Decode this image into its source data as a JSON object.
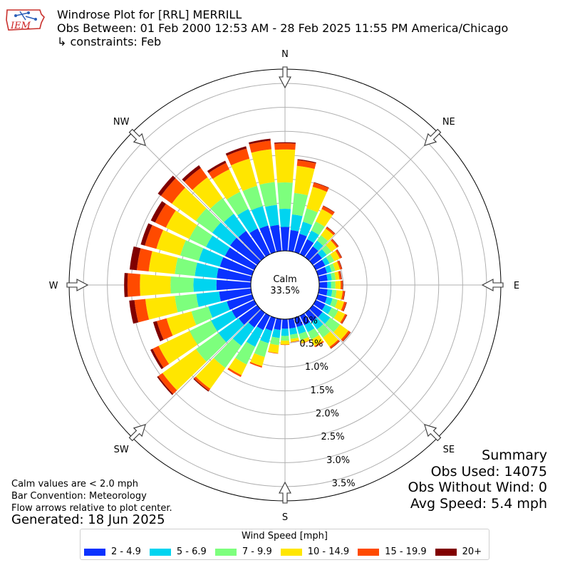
{
  "header": {
    "title": "Windrose Plot for [RRL] MERRILL",
    "period": "Obs Between: 01 Feb 2000 12:53 AM - 28 Feb 2025 11:55 PM America/Chicago",
    "constraints": "↳ constraints: Feb"
  },
  "logo": {
    "text": "IEM",
    "icon": "iem-iowa-logo",
    "color": "#cc2222"
  },
  "notes": {
    "calm": "Calm values are < 2.0 mph",
    "convention": "Bar Convention: Meteorology",
    "flow": "Flow arrows relative to plot center.",
    "generated": "Generated: 18 Jun 2025"
  },
  "summary": {
    "heading": "Summary",
    "obs_used": "Obs Used: 14075",
    "obs_without_wind": "Obs Without Wind: 0",
    "avg_speed": "Avg Speed: 5.4 mph"
  },
  "center": {
    "label": "Calm",
    "value": "33.5%"
  },
  "chart_data": {
    "type": "windrose",
    "title": "Windrose Plot for [RRL] MERRILL",
    "calm_percent": 33.5,
    "radial_ticks": [
      "0.0%",
      "0.5%",
      "1.0%",
      "1.5%",
      "2.0%",
      "2.5%",
      "3.0%",
      "3.5%"
    ],
    "radial_max": 3.8,
    "grid": true,
    "compass": [
      "N",
      "NE",
      "E",
      "SE",
      "S",
      "SW",
      "W",
      "NW"
    ],
    "legend_title": "Wind Speed [mph]",
    "bins": [
      {
        "label": "2 - 4.9",
        "color": "#0a32ff"
      },
      {
        "label": "5 - 6.9",
        "color": "#00d4f0"
      },
      {
        "label": "7 - 9.9",
        "color": "#7dff7d"
      },
      {
        "label": "10 - 14.9",
        "color": "#ffe600"
      },
      {
        "label": "15 - 19.9",
        "color": "#ff4a00"
      },
      {
        "label": "20+",
        "color": "#800000"
      }
    ],
    "directions_deg": [
      0,
      10,
      20,
      30,
      40,
      50,
      60,
      70,
      80,
      90,
      100,
      110,
      120,
      130,
      140,
      150,
      160,
      170,
      180,
      190,
      200,
      210,
      220,
      230,
      240,
      250,
      260,
      270,
      280,
      290,
      300,
      310,
      320,
      330,
      340,
      350
    ],
    "cumulative_percent": [
      [
        0.5,
        0.88,
        1.43,
        2.12,
        2.25,
        2.27
      ],
      [
        0.44,
        0.77,
        1.22,
        1.79,
        1.91,
        1.93
      ],
      [
        0.4,
        0.66,
        0.95,
        1.42,
        1.51,
        1.52
      ],
      [
        0.35,
        0.55,
        0.76,
        1.05,
        1.12,
        1.13
      ],
      [
        0.28,
        0.43,
        0.57,
        0.74,
        0.78,
        0.79
      ],
      [
        0.24,
        0.36,
        0.48,
        0.62,
        0.66,
        0.67
      ],
      [
        0.22,
        0.32,
        0.43,
        0.56,
        0.6,
        0.61
      ],
      [
        0.2,
        0.3,
        0.38,
        0.48,
        0.52,
        0.53
      ],
      [
        0.18,
        0.27,
        0.35,
        0.43,
        0.47,
        0.48
      ],
      [
        0.17,
        0.25,
        0.34,
        0.45,
        0.49,
        0.5
      ],
      [
        0.18,
        0.28,
        0.37,
        0.5,
        0.54,
        0.55
      ],
      [
        0.2,
        0.32,
        0.43,
        0.57,
        0.62,
        0.63
      ],
      [
        0.22,
        0.37,
        0.52,
        0.68,
        0.72,
        0.73
      ],
      [
        0.25,
        0.45,
        0.7,
        0.92,
        0.97,
        0.98
      ],
      [
        0.24,
        0.43,
        0.64,
        0.88,
        0.92,
        0.93
      ],
      [
        0.22,
        0.38,
        0.55,
        0.7,
        0.73,
        0.73
      ],
      [
        0.2,
        0.35,
        0.48,
        0.55,
        0.56,
        0.56
      ],
      [
        0.2,
        0.33,
        0.42,
        0.48,
        0.49,
        0.49
      ],
      [
        0.2,
        0.35,
        0.45,
        0.53,
        0.54,
        0.54
      ],
      [
        0.23,
        0.4,
        0.55,
        0.72,
        0.73,
        0.73
      ],
      [
        0.28,
        0.55,
        0.85,
        1.05,
        1.08,
        1.08
      ],
      [
        0.33,
        0.72,
        1.13,
        1.38,
        1.42,
        1.42
      ],
      [
        0.38,
        0.85,
        1.42,
        1.96,
        2.01,
        2.03
      ],
      [
        0.48,
        1.0,
        1.58,
        2.44,
        2.55,
        2.58
      ],
      [
        0.52,
        1.0,
        1.5,
        2.22,
        2.36,
        2.41
      ],
      [
        0.55,
        0.95,
        1.32,
        1.86,
        2.07,
        2.15
      ],
      [
        0.67,
        1.15,
        1.6,
        2.22,
        2.45,
        2.56
      ],
      [
        0.72,
        1.2,
        1.68,
        2.32,
        2.58,
        2.65
      ],
      [
        0.72,
        1.18,
        1.6,
        2.15,
        2.4,
        2.55
      ],
      [
        0.7,
        1.16,
        1.56,
        2.08,
        2.33,
        2.42
      ],
      [
        0.68,
        1.12,
        1.51,
        2.05,
        2.3,
        2.4
      ],
      [
        0.7,
        1.16,
        1.58,
        2.2,
        2.48,
        2.56
      ],
      [
        0.68,
        1.12,
        1.52,
        2.06,
        2.3,
        2.37
      ],
      [
        0.6,
        1.05,
        1.45,
        1.97,
        2.12,
        2.17
      ],
      [
        0.58,
        1.0,
        1.44,
        2.03,
        2.25,
        2.3
      ],
      [
        0.55,
        0.97,
        1.45,
        2.14,
        2.32,
        2.36
      ]
    ]
  }
}
